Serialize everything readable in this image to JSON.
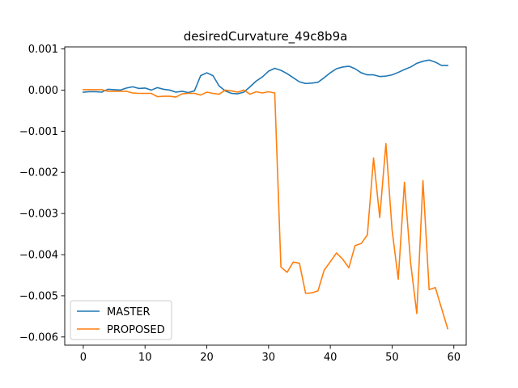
{
  "chart_data": {
    "type": "line",
    "title": "desiredCurvature_49c8b9a",
    "xlabel": "",
    "ylabel": "",
    "xlim": [
      -3,
      62
    ],
    "ylim": [
      -0.0062,
      0.00105
    ],
    "x_ticks": [
      0,
      10,
      20,
      30,
      40,
      50,
      60
    ],
    "x_tick_labels": [
      "0",
      "10",
      "20",
      "30",
      "40",
      "50",
      "60"
    ],
    "y_ticks": [
      0.001,
      0.0,
      -0.001,
      -0.002,
      -0.003,
      -0.004,
      -0.005,
      -0.006
    ],
    "y_tick_labels": [
      "0.001",
      "0.000",
      "−0.001",
      "−0.002",
      "−0.003",
      "−0.004",
      "−0.005",
      "−0.006"
    ],
    "grid": false,
    "legend_position": "lower-left",
    "series": [
      {
        "name": "MASTER",
        "color": "#1f77b4",
        "x": [
          0,
          1,
          2,
          3,
          4,
          5,
          6,
          7,
          8,
          9,
          10,
          11,
          12,
          13,
          14,
          15,
          16,
          17,
          18,
          19,
          20,
          21,
          22,
          23,
          24,
          25,
          26,
          27,
          28,
          29,
          30,
          31,
          32,
          33,
          34,
          35,
          36,
          37,
          38,
          39,
          40,
          41,
          42,
          43,
          44,
          45,
          46,
          47,
          48,
          49,
          50,
          51,
          52,
          53,
          54,
          55,
          56,
          57,
          58,
          59
        ],
        "y": [
          -5e-05,
          -4e-05,
          -4e-05,
          -5e-05,
          2e-05,
          1e-05,
          0.0,
          5e-05,
          8e-05,
          4e-05,
          5e-05,
          0.0,
          6e-05,
          2e-05,
          0.0,
          -5e-05,
          -3e-05,
          -6e-05,
          -2e-05,
          0.00035,
          0.00042,
          0.00035,
          0.0001,
          -2e-05,
          -8e-05,
          -9e-05,
          -5e-05,
          8e-05,
          0.00022,
          0.00032,
          0.00046,
          0.00053,
          0.00048,
          0.0004,
          0.0003,
          0.0002,
          0.00016,
          0.00017,
          0.00019,
          0.0003,
          0.00042,
          0.00052,
          0.00056,
          0.00058,
          0.00052,
          0.00042,
          0.00037,
          0.00037,
          0.00033,
          0.00034,
          0.00037,
          0.00043,
          0.0005,
          0.00056,
          0.00065,
          0.0007,
          0.00073,
          0.00068,
          0.0006,
          0.0006
        ]
      },
      {
        "name": "PROPOSED",
        "color": "#ff7f0e",
        "x": [
          0,
          1,
          2,
          3,
          4,
          5,
          6,
          7,
          8,
          9,
          10,
          11,
          12,
          13,
          14,
          15,
          16,
          17,
          18,
          19,
          20,
          21,
          22,
          23,
          24,
          25,
          26,
          27,
          28,
          29,
          30,
          31,
          32,
          33,
          34,
          35,
          36,
          37,
          38,
          39,
          40,
          41,
          42,
          43,
          44,
          45,
          46,
          47,
          48,
          49,
          50,
          51,
          52,
          53,
          54,
          55,
          56,
          57,
          58,
          59
        ],
        "y": [
          1e-05,
          1e-05,
          1e-05,
          1e-05,
          -3e-05,
          -3e-05,
          -3e-05,
          -3e-05,
          -7e-05,
          -8e-05,
          -8e-05,
          -8e-05,
          -0.00016,
          -0.00015,
          -0.00015,
          -0.00017,
          -9e-05,
          -8e-05,
          -8e-05,
          -0.00012,
          -5e-05,
          -8e-05,
          -0.0001,
          0.0,
          -2e-05,
          -5e-05,
          0.0,
          -0.0001,
          -4e-05,
          -7e-05,
          -4e-05,
          -7e-05,
          -0.0043,
          -0.00443,
          -0.00418,
          -0.00421,
          -0.00494,
          -0.00493,
          -0.00488,
          -0.00438,
          -0.00417,
          -0.00396,
          -0.00411,
          -0.00432,
          -0.00378,
          -0.00373,
          -0.00352,
          -0.00165,
          -0.0031,
          -0.0013,
          -0.0034,
          -0.0046,
          -0.00224,
          -0.0042,
          -0.00543,
          -0.0022,
          -0.00485,
          -0.0048,
          -0.0053,
          -0.0058
        ]
      }
    ]
  }
}
